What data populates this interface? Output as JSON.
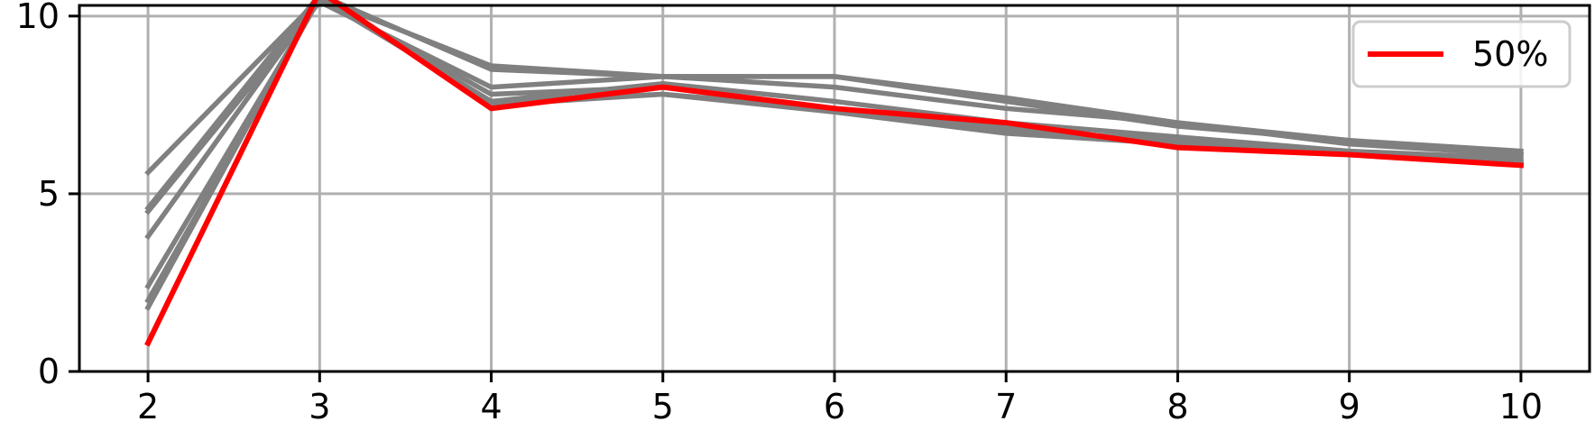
{
  "chart_data": {
    "type": "line",
    "x": [
      2,
      3,
      4,
      5,
      6,
      7,
      8,
      9,
      10
    ],
    "xlim": [
      1.6,
      10.4
    ],
    "ylim": [
      0,
      10.3
    ],
    "xticks": [
      "2",
      "3",
      "4",
      "5",
      "6",
      "7",
      "8",
      "9",
      "10"
    ],
    "yticks": [
      "0",
      "5",
      "10"
    ],
    "grid": true,
    "legend_placement": "top-right",
    "series": [
      {
        "values": [
          5.6,
          10.5,
          8.6,
          8.3,
          8.3,
          7.7,
          7.0,
          6.5,
          6.2
        ],
        "color": "#808080"
      },
      {
        "values": [
          4.6,
          10.6,
          8.5,
          8.3,
          8.3,
          7.6,
          6.9,
          6.5,
          6.1
        ],
        "color": "#808080"
      },
      {
        "values": [
          4.5,
          10.4,
          8.0,
          8.3,
          8.0,
          7.4,
          7.0,
          6.4,
          6.1
        ],
        "color": "#808080"
      },
      {
        "values": [
          3.8,
          10.5,
          7.6,
          8.1,
          7.6,
          7.0,
          6.6,
          6.2,
          6.0
        ],
        "color": "#808080"
      },
      {
        "values": [
          2.4,
          10.5,
          7.8,
          8.0,
          7.4,
          6.8,
          6.5,
          6.1,
          5.9
        ],
        "color": "#808080"
      },
      {
        "values": [
          2.0,
          10.5,
          7.6,
          7.8,
          7.3,
          6.7,
          6.4,
          6.1,
          5.9
        ],
        "color": "#808080"
      },
      {
        "values": [
          1.8,
          10.6,
          7.5,
          7.8,
          7.4,
          6.9,
          6.4,
          6.1,
          5.9
        ],
        "color": "#808080"
      },
      {
        "name": "50%",
        "values": [
          0.8,
          10.7,
          7.4,
          8.0,
          7.4,
          7.0,
          6.3,
          6.1,
          5.8
        ],
        "color": "#ff0000"
      }
    ]
  }
}
